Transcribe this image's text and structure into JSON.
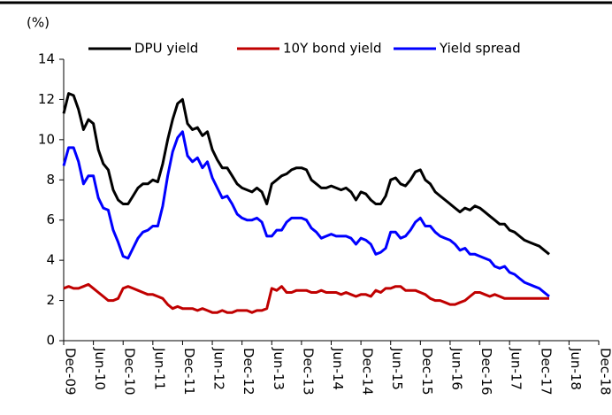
{
  "chart_data": {
    "type": "line",
    "ylabel": "(%)",
    "x": [
      "Dec-09",
      "Jan-10",
      "Feb-10",
      "Mar-10",
      "Apr-10",
      "May-10",
      "Jun-10",
      "Jul-10",
      "Aug-10",
      "Sep-10",
      "Oct-10",
      "Nov-10",
      "Dec-10",
      "Jan-11",
      "Feb-11",
      "Mar-11",
      "Apr-11",
      "May-11",
      "Jun-11",
      "Jul-11",
      "Aug-11",
      "Sep-11",
      "Oct-11",
      "Nov-11",
      "Dec-11",
      "Jan-12",
      "Feb-12",
      "Mar-12",
      "Apr-12",
      "May-12",
      "Jun-12",
      "Jul-12",
      "Aug-12",
      "Sep-12",
      "Oct-12",
      "Nov-12",
      "Dec-12",
      "Jan-13",
      "Feb-13",
      "Mar-13",
      "Apr-13",
      "May-13",
      "Jun-13",
      "Jul-13",
      "Aug-13",
      "Sep-13",
      "Oct-13",
      "Nov-13",
      "Dec-13",
      "Jan-14",
      "Feb-14",
      "Mar-14",
      "Apr-14",
      "May-14",
      "Jun-14",
      "Jul-14",
      "Aug-14",
      "Sep-14",
      "Oct-14",
      "Nov-14",
      "Dec-14",
      "Jan-15",
      "Feb-15",
      "Mar-15",
      "Apr-15",
      "May-15",
      "Jun-15",
      "Jul-15",
      "Aug-15",
      "Sep-15",
      "Oct-15",
      "Nov-15",
      "Dec-15",
      "Jan-16",
      "Feb-16",
      "Mar-16",
      "Apr-16",
      "May-16",
      "Jun-16",
      "Jul-16",
      "Aug-16",
      "Sep-16",
      "Oct-16",
      "Nov-16",
      "Dec-16",
      "Jan-17",
      "Feb-17",
      "Mar-17",
      "Apr-17",
      "May-17",
      "Jun-17",
      "Jul-17",
      "Aug-17",
      "Sep-17",
      "Oct-17",
      "Nov-17",
      "Dec-17",
      "Jan-18",
      "Feb-18"
    ],
    "series": [
      {
        "name": "DPU yield",
        "color": "#000000",
        "values": [
          11.3,
          12.3,
          12.2,
          11.5,
          10.5,
          11.0,
          10.8,
          9.5,
          8.8,
          8.5,
          7.5,
          7.0,
          6.8,
          6.8,
          7.2,
          7.6,
          7.8,
          7.8,
          8.0,
          7.9,
          8.8,
          10.0,
          11.0,
          11.8,
          12.0,
          10.8,
          10.5,
          10.6,
          10.2,
          10.4,
          9.5,
          9.0,
          8.6,
          8.6,
          8.2,
          7.8,
          7.6,
          7.5,
          7.4,
          7.6,
          7.4,
          6.8,
          7.8,
          8.0,
          8.2,
          8.3,
          8.5,
          8.6,
          8.6,
          8.5,
          8.0,
          7.8,
          7.6,
          7.6,
          7.7,
          7.6,
          7.5,
          7.6,
          7.4,
          7.0,
          7.4,
          7.3,
          7.0,
          6.8,
          6.8,
          7.2,
          8.0,
          8.1,
          7.8,
          7.7,
          8.0,
          8.4,
          8.5,
          8.0,
          7.8,
          7.4,
          7.2,
          7.0,
          6.8,
          6.6,
          6.4,
          6.6,
          6.5,
          6.7,
          6.6,
          6.4,
          6.2,
          6.0,
          5.8,
          5.8,
          5.5,
          5.4,
          5.2,
          5.0,
          4.9,
          4.8,
          4.7,
          4.5,
          4.3
        ]
      },
      {
        "name": "10Y bond yield",
        "color": "#c00000",
        "values": [
          2.6,
          2.7,
          2.6,
          2.6,
          2.7,
          2.8,
          2.6,
          2.4,
          2.2,
          2.0,
          2.0,
          2.1,
          2.6,
          2.7,
          2.6,
          2.5,
          2.4,
          2.3,
          2.3,
          2.2,
          2.1,
          1.8,
          1.6,
          1.7,
          1.6,
          1.6,
          1.6,
          1.5,
          1.6,
          1.5,
          1.4,
          1.4,
          1.5,
          1.4,
          1.4,
          1.5,
          1.5,
          1.5,
          1.4,
          1.5,
          1.5,
          1.6,
          2.6,
          2.5,
          2.7,
          2.4,
          2.4,
          2.5,
          2.5,
          2.5,
          2.4,
          2.4,
          2.5,
          2.4,
          2.4,
          2.4,
          2.3,
          2.4,
          2.3,
          2.2,
          2.3,
          2.3,
          2.2,
          2.5,
          2.4,
          2.6,
          2.6,
          2.7,
          2.7,
          2.5,
          2.5,
          2.5,
          2.4,
          2.3,
          2.1,
          2.0,
          2.0,
          1.9,
          1.8,
          1.8,
          1.9,
          2.0,
          2.2,
          2.4,
          2.4,
          2.3,
          2.2,
          2.3,
          2.2,
          2.1,
          2.1,
          2.1,
          2.1,
          2.1,
          2.1,
          2.1,
          2.1,
          2.1,
          2.1
        ]
      },
      {
        "name": "Yield spread",
        "color": "#0000ff",
        "values": [
          8.7,
          9.6,
          9.6,
          8.9,
          7.8,
          8.2,
          8.2,
          7.1,
          6.6,
          6.5,
          5.5,
          4.9,
          4.2,
          4.1,
          4.6,
          5.1,
          5.4,
          5.5,
          5.7,
          5.7,
          6.7,
          8.2,
          9.4,
          10.1,
          10.4,
          9.2,
          8.9,
          9.1,
          8.6,
          8.9,
          8.1,
          7.6,
          7.1,
          7.2,
          6.8,
          6.3,
          6.1,
          6.0,
          6.0,
          6.1,
          5.9,
          5.2,
          5.2,
          5.5,
          5.5,
          5.9,
          6.1,
          6.1,
          6.1,
          6.0,
          5.6,
          5.4,
          5.1,
          5.2,
          5.3,
          5.2,
          5.2,
          5.2,
          5.1,
          4.8,
          5.1,
          5.0,
          4.8,
          4.3,
          4.4,
          4.6,
          5.4,
          5.4,
          5.1,
          5.2,
          5.5,
          5.9,
          6.1,
          5.7,
          5.7,
          5.4,
          5.2,
          5.1,
          5.0,
          4.8,
          4.5,
          4.6,
          4.3,
          4.3,
          4.2,
          4.1,
          4.0,
          3.7,
          3.6,
          3.7,
          3.4,
          3.3,
          3.1,
          2.9,
          2.8,
          2.7,
          2.6,
          2.4,
          2.2
        ]
      }
    ],
    "xlim": [
      "Dec-09",
      "Dec-18"
    ],
    "xticks": [
      "Dec-09",
      "Jun-10",
      "Dec-10",
      "Jun-11",
      "Dec-11",
      "Jun-12",
      "Dec-12",
      "Jun-13",
      "Dec-13",
      "Jun-14",
      "Dec-14",
      "Jun-15",
      "Dec-15",
      "Jun-16",
      "Dec-16",
      "Jun-17",
      "Dec-17",
      "Jun-18",
      "Dec-18"
    ],
    "ylim": [
      0,
      14
    ],
    "yticks": [
      0,
      2,
      4,
      6,
      8,
      10,
      12,
      14
    ],
    "grid": false,
    "legend": "top"
  }
}
